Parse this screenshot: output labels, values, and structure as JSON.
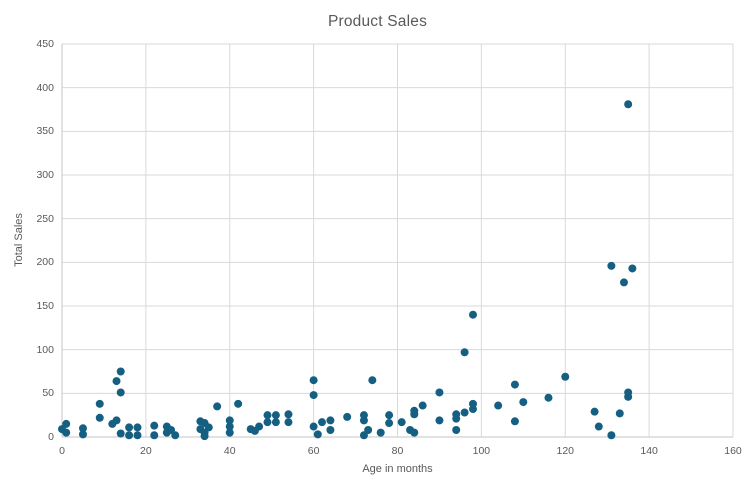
{
  "colors": {
    "point": "#156082",
    "grid": "#D9D9D9",
    "axis_line": "#C6C6C6",
    "text": "#595959",
    "background": "#FFFFFF"
  },
  "chart_data": {
    "type": "scatter",
    "title": "Product Sales",
    "xlabel": "Age in months",
    "ylabel": "Total Sales",
    "xlim": [
      0,
      160
    ],
    "ylim": [
      0,
      450
    ],
    "x_ticks": [
      0,
      20,
      40,
      60,
      80,
      100,
      120,
      140,
      160
    ],
    "y_ticks": [
      0,
      50,
      100,
      150,
      200,
      250,
      300,
      350,
      400,
      450
    ],
    "grid": true,
    "legend": false,
    "marker_radius": 4,
    "points": [
      [
        0,
        9
      ],
      [
        1,
        15
      ],
      [
        1,
        5
      ],
      [
        5,
        10
      ],
      [
        5,
        3
      ],
      [
        9,
        38
      ],
      [
        9,
        22
      ],
      [
        12,
        15
      ],
      [
        13,
        64
      ],
      [
        13,
        19
      ],
      [
        14,
        75
      ],
      [
        14,
        51
      ],
      [
        14,
        4
      ],
      [
        16,
        11
      ],
      [
        16,
        2
      ],
      [
        18,
        11
      ],
      [
        18,
        2
      ],
      [
        22,
        13
      ],
      [
        22,
        2
      ],
      [
        25,
        12
      ],
      [
        25,
        5
      ],
      [
        26,
        8
      ],
      [
        27,
        2
      ],
      [
        33,
        18
      ],
      [
        33,
        9
      ],
      [
        34,
        16
      ],
      [
        34,
        5
      ],
      [
        34,
        1
      ],
      [
        35,
        11
      ],
      [
        37,
        35
      ],
      [
        40,
        19
      ],
      [
        40,
        12
      ],
      [
        40,
        5
      ],
      [
        42,
        38
      ],
      [
        45,
        9
      ],
      [
        46,
        7
      ],
      [
        47,
        12
      ],
      [
        49,
        25
      ],
      [
        49,
        17
      ],
      [
        51,
        25
      ],
      [
        51,
        17
      ],
      [
        54,
        26
      ],
      [
        54,
        17
      ],
      [
        60,
        65
      ],
      [
        60,
        48
      ],
      [
        60,
        12
      ],
      [
        61,
        3
      ],
      [
        62,
        17
      ],
      [
        64,
        19
      ],
      [
        64,
        8
      ],
      [
        68,
        23
      ],
      [
        72,
        25
      ],
      [
        72,
        19
      ],
      [
        72,
        2
      ],
      [
        73,
        8
      ],
      [
        74,
        65
      ],
      [
        76,
        5
      ],
      [
        78,
        25
      ],
      [
        78,
        16
      ],
      [
        81,
        17
      ],
      [
        83,
        8
      ],
      [
        84,
        30
      ],
      [
        84,
        26
      ],
      [
        84,
        5
      ],
      [
        86,
        36
      ],
      [
        90,
        51
      ],
      [
        90,
        19
      ],
      [
        94,
        26
      ],
      [
        94,
        21
      ],
      [
        94,
        8
      ],
      [
        96,
        97
      ],
      [
        96,
        28
      ],
      [
        98,
        140
      ],
      [
        98,
        38
      ],
      [
        98,
        32
      ],
      [
        104,
        36
      ],
      [
        108,
        60
      ],
      [
        108,
        18
      ],
      [
        110,
        40
      ],
      [
        116,
        45
      ],
      [
        120,
        69
      ],
      [
        127,
        29
      ],
      [
        128,
        12
      ],
      [
        131,
        196
      ],
      [
        131,
        2
      ],
      [
        133,
        27
      ],
      [
        134,
        177
      ],
      [
        135,
        381
      ],
      [
        135,
        51
      ],
      [
        135,
        46
      ],
      [
        136,
        193
      ]
    ]
  }
}
